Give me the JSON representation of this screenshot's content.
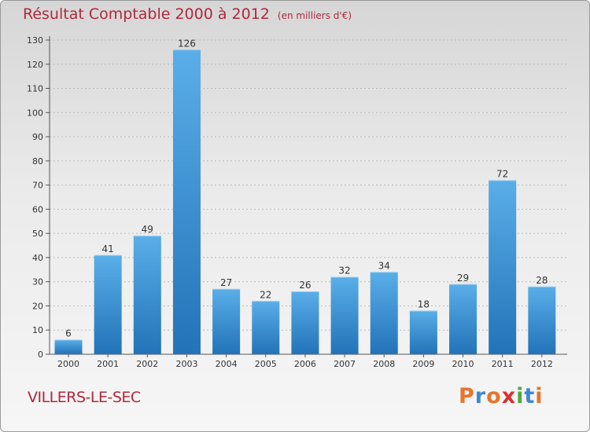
{
  "header": {
    "title": "Résultat Comptable 2000 à 2012",
    "unit": "(en milliers d'€)"
  },
  "footer": {
    "town": "VILLERS-LE-SEC"
  },
  "logo": {
    "letters": [
      "P",
      "r",
      "o",
      "x",
      "i",
      "t",
      "i"
    ],
    "colors": [
      "#e8742a",
      "#3d88d2",
      "#e8742a",
      "#d9312e",
      "#4aab3e",
      "#3d88d2",
      "#e8742a"
    ]
  },
  "chart_data": {
    "type": "bar",
    "categories": [
      "2000",
      "2001",
      "2002",
      "2003",
      "2004",
      "2005",
      "2006",
      "2007",
      "2008",
      "2009",
      "2010",
      "2011",
      "2012"
    ],
    "values": [
      6,
      41,
      49,
      126,
      27,
      22,
      26,
      32,
      34,
      18,
      29,
      72,
      28
    ],
    "title": "Résultat Comptable 2000 à 2012",
    "xlabel": "",
    "ylabel": "",
    "ylim": [
      0,
      130
    ],
    "yticks": [
      0,
      10,
      20,
      30,
      40,
      50,
      60,
      70,
      80,
      90,
      100,
      110,
      120,
      130
    ],
    "grid": true,
    "bar_color": "#3a8fd6"
  }
}
